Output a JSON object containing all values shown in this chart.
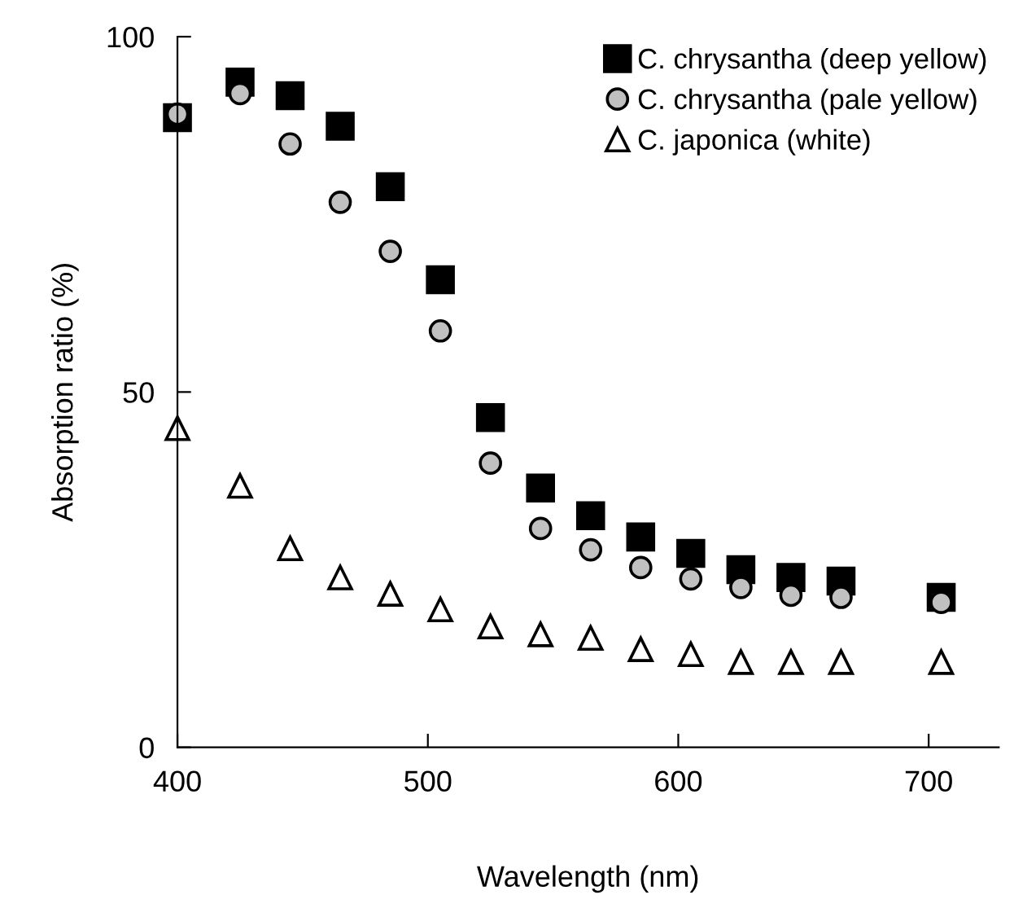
{
  "chart_data": {
    "type": "scatter",
    "xlabel": "Wavelength (nm)",
    "ylabel": "Absorption ratio (%)",
    "x": [
      400,
      425,
      445,
      465,
      485,
      505,
      525,
      545,
      565,
      585,
      605,
      625,
      645,
      665,
      705
    ],
    "series": [
      {
        "name": "C. chrysantha (deep yellow)",
        "color": "#000000",
        "marker": "square",
        "values": [
          88.6,
          93.6,
          91.7,
          87.4,
          78.9,
          65.8,
          46.4,
          36.5,
          32.6,
          29.6,
          27.3,
          25.0,
          23.9,
          23.4,
          21.1
        ]
      },
      {
        "name": "C. chrysantha (pale yellow)",
        "color": "#c0c0c0",
        "marker": "circle",
        "values": [
          89.1,
          92.0,
          84.9,
          76.7,
          69.8,
          58.6,
          40.0,
          30.8,
          27.8,
          25.3,
          23.7,
          22.5,
          21.4,
          21.1,
          20.4
        ]
      },
      {
        "name": "C. japonica (white)",
        "color": "#ffffff",
        "marker": "triangle",
        "values": [
          44.9,
          36.8,
          28.0,
          23.9,
          21.6,
          19.4,
          17.0,
          15.9,
          15.4,
          13.8,
          13.1,
          12.0,
          12.0,
          12.0,
          12.0
        ]
      }
    ],
    "xlim": [
      400,
      728
    ],
    "ylim": [
      0,
      100
    ],
    "xticks": [
      400,
      500,
      600,
      700
    ],
    "yticks": [
      0,
      50,
      100
    ],
    "grid": false,
    "legend": "top right"
  }
}
